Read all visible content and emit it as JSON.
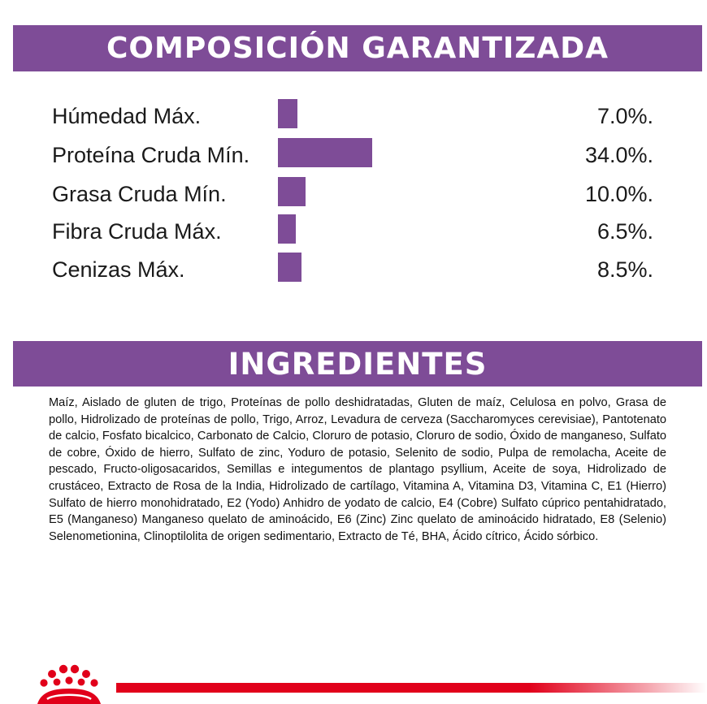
{
  "composition": {
    "title": "COMPOSICIÓN GARANTIZADA",
    "bar_color": "#7e4c97",
    "rows": [
      {
        "label": "Húmedad Máx.",
        "value": 7.0,
        "text": "7.0%."
      },
      {
        "label": "Proteína Cruda Mín.",
        "value": 34.0,
        "text": "34.0%."
      },
      {
        "label": "Grasa Cruda Mín.",
        "value": 10.0,
        "text": "10.0%."
      },
      {
        "label": "Fibra Cruda Máx.",
        "value": 6.5,
        "text": "6.5%."
      },
      {
        "label": "Cenizas Máx.",
        "value": 8.5,
        "text": "8.5%."
      }
    ]
  },
  "ingredients": {
    "title": "INGREDIENTES",
    "text": "Maíz, Aislado de gluten de trigo, Proteínas de pollo deshidratadas, Gluten de maíz, Celulosa en polvo, Grasa de pollo, Hidrolizado de proteínas de pollo, Trigo, Arroz, Levadura de cerveza (Saccharomyces cerevisiae), Pantotenato de calcio, Fosfato bicalcico, Carbonato de Calcio, Cloruro de potasio, Cloruro de sodio, Óxido de manganeso, Sulfato de cobre, Óxido de hierro, Sulfato de zinc, Yoduro de potasio, Selenito de sodio, Pulpa de remolacha, Aceite de pescado, Fructo-oligosacaridos, Semillas e integumentos de plantago psyllium, Aceite de soya, Hidrolizado de crustáceo, Extracto de Rosa de la India, Hidrolizado de cartílago, Vitamina A, Vitamina D3, Vitamina C, E1 (Hierro) Sulfato de hierro monohidratado, E2 (Yodo) Anhidro de yodato de calcio, E4 (Cobre) Sulfato cúprico pentahidratado, E5 (Manganeso) Manganeso quelato de aminoácido, E6 (Zinc) Zinc quelato de aminoácido hidratado, E8 (Selenio) Selenometionina, Clinoptilolita de origen sedimentario, Extracto de Té, BHA, Ácido cítrico, Ácido sórbico."
  },
  "footer": {
    "logo_icon": "crown-icon",
    "logo_color": "#e1001a",
    "line_color": "#e1001a"
  }
}
